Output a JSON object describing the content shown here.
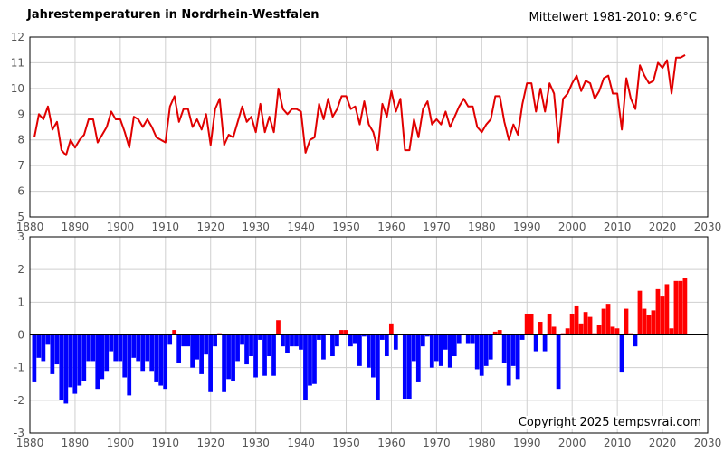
{
  "title": "Jahrestemperaturen in Nordrhein-Westfalen",
  "mean_label": "Mittelwert 1981-2010: 9.6°C",
  "copyright": "Copyright 2025 tempsvrai.com",
  "colors": {
    "line": "#e00000",
    "positive": "#ff0000",
    "negative": "#0000ff",
    "grid": "#cfcfcf"
  },
  "chart_data": [
    {
      "type": "line",
      "title": "Jahrestemperaturen in Nordrhein-Westfalen",
      "xlim": [
        1880,
        2030
      ],
      "ylim": [
        5,
        12
      ],
      "x_ticks": [
        1880,
        1890,
        1900,
        1910,
        1920,
        1930,
        1940,
        1950,
        1960,
        1970,
        1980,
        1990,
        2000,
        2010,
        2020,
        2030
      ],
      "y_ticks": [
        5,
        6,
        7,
        8,
        9,
        10,
        11,
        12
      ],
      "grid": true,
      "x_start": 1881,
      "series": [
        {
          "values": [
            8.1,
            9.0,
            8.8,
            9.3,
            8.4,
            8.7,
            7.6,
            7.4,
            8.0,
            7.7,
            8.0,
            8.2,
            8.8,
            8.8,
            7.9,
            8.2,
            8.5,
            9.1,
            8.8,
            8.8,
            8.3,
            7.7,
            8.9,
            8.8,
            8.5,
            8.8,
            8.5,
            8.1,
            8.0,
            7.9,
            9.3,
            9.7,
            8.7,
            9.2,
            9.2,
            8.5,
            8.8,
            8.4,
            9.0,
            7.8,
            9.2,
            9.6,
            7.8,
            8.2,
            8.1,
            8.7,
            9.3,
            8.7,
            8.9,
            8.3,
            9.4,
            8.3,
            8.9,
            8.3,
            10.0,
            9.2,
            9.0,
            9.2,
            9.2,
            9.1,
            7.5,
            8.0,
            8.1,
            9.4,
            8.8,
            9.6,
            8.9,
            9.2,
            9.7,
            9.7,
            9.2,
            9.3,
            8.6,
            9.5,
            8.6,
            8.3,
            7.6,
            9.4,
            8.9,
            9.9,
            9.1,
            9.6,
            7.6,
            7.6,
            8.8,
            8.1,
            9.2,
            9.5,
            8.6,
            8.8,
            8.6,
            9.1,
            8.5,
            8.9,
            9.3,
            9.6,
            9.3,
            9.3,
            8.5,
            8.3,
            8.6,
            8.8,
            9.7,
            9.7,
            8.7,
            8.0,
            8.6,
            8.2,
            9.4,
            10.2,
            10.2,
            9.1,
            10.0,
            9.1,
            10.2,
            9.8,
            7.9,
            9.6,
            9.8,
            10.2,
            10.5,
            9.9,
            10.3,
            10.2,
            9.6,
            9.9,
            10.4,
            10.5,
            9.8,
            9.8,
            8.4,
            10.4,
            9.6,
            9.2,
            10.9,
            10.5,
            10.2,
            10.3,
            11.0,
            10.8,
            11.1,
            9.8,
            11.2,
            11.2,
            11.3
          ]
        }
      ]
    },
    {
      "type": "bar",
      "title": "",
      "xlim": [
        1880,
        2030
      ],
      "ylim": [
        -3,
        3
      ],
      "x_ticks": [
        1880,
        1890,
        1900,
        1910,
        1920,
        1930,
        1940,
        1950,
        1960,
        1970,
        1980,
        1990,
        2000,
        2010,
        2020,
        2030
      ],
      "y_ticks": [
        -3,
        -2,
        -1,
        0,
        1,
        2,
        3
      ],
      "grid": true,
      "x_start": 1881,
      "series": [
        {
          "values": [
            -1.45,
            -0.7,
            -0.8,
            -0.3,
            -1.2,
            -0.9,
            -2.0,
            -2.1,
            -1.6,
            -1.8,
            -1.55,
            -1.4,
            -0.8,
            -0.8,
            -1.65,
            -1.35,
            -1.1,
            -0.5,
            -0.8,
            -0.8,
            -1.3,
            -1.85,
            -0.7,
            -0.8,
            -1.1,
            -0.8,
            -1.1,
            -1.45,
            -1.55,
            -1.65,
            -0.3,
            0.15,
            -0.85,
            -0.35,
            -0.35,
            -1.0,
            -0.75,
            -1.2,
            -0.6,
            -1.75,
            -0.35,
            0.05,
            -1.75,
            -1.35,
            -1.4,
            -0.8,
            -0.3,
            -0.9,
            -0.65,
            -1.3,
            -0.15,
            -1.25,
            -0.65,
            -1.25,
            0.45,
            -0.35,
            -0.55,
            -0.35,
            -0.35,
            -0.45,
            -2.0,
            -1.55,
            -1.5,
            -0.15,
            -0.75,
            0.0,
            -0.65,
            -0.35,
            0.15,
            0.15,
            -0.35,
            -0.25,
            -0.95,
            -0.05,
            -1.0,
            -1.3,
            -2.0,
            -0.15,
            -0.65,
            0.35,
            -0.45,
            0.0,
            -1.95,
            -1.95,
            -0.8,
            -1.45,
            -0.35,
            -0.05,
            -1.0,
            -0.8,
            -0.95,
            -0.45,
            -1.0,
            -0.65,
            -0.25,
            0.0,
            -0.25,
            -0.25,
            -1.05,
            -1.25,
            -0.95,
            -0.75,
            0.1,
            0.15,
            -0.85,
            -1.55,
            -0.95,
            -1.35,
            -0.15,
            0.65,
            0.65,
            -0.5,
            0.4,
            -0.5,
            0.65,
            0.25,
            -1.65,
            0.05,
            0.2,
            0.65,
            0.9,
            0.35,
            0.7,
            0.55,
            0.05,
            0.3,
            0.8,
            0.95,
            0.25,
            0.2,
            -1.15,
            0.8,
            0.05,
            -0.35,
            1.35,
            0.8,
            0.6,
            0.75,
            1.4,
            1.2,
            1.55,
            0.2,
            1.65,
            1.65,
            1.75
          ]
        }
      ]
    }
  ]
}
